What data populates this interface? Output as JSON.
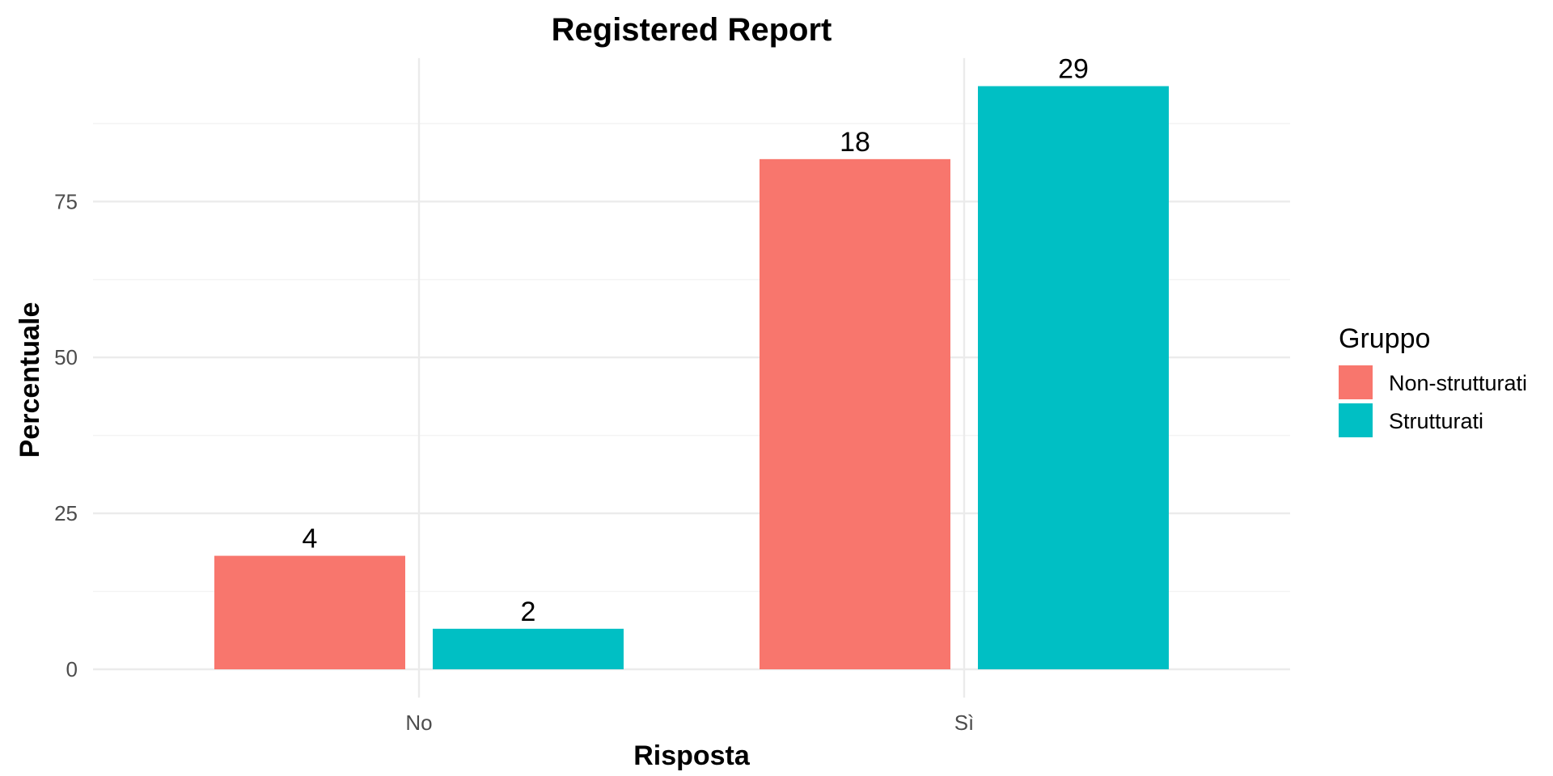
{
  "chart_data": {
    "type": "bar",
    "title": "Registered Report",
    "xlabel": "Risposta",
    "ylabel": "Percentuale",
    "categories": [
      "No",
      "Sì"
    ],
    "series": [
      {
        "name": "Non-strutturati",
        "color": "#F8766D",
        "values": [
          18.2,
          81.8
        ],
        "labels": [
          "4",
          "18"
        ]
      },
      {
        "name": "Strutturati",
        "color": "#00BFC4",
        "values": [
          6.5,
          93.5
        ],
        "labels": [
          "2",
          "29"
        ]
      }
    ],
    "yticks": [
      0,
      25,
      50,
      75
    ],
    "ylim": [
      0,
      98
    ],
    "grid": true,
    "legend": {
      "title": "Gruppo",
      "position": "right"
    }
  }
}
